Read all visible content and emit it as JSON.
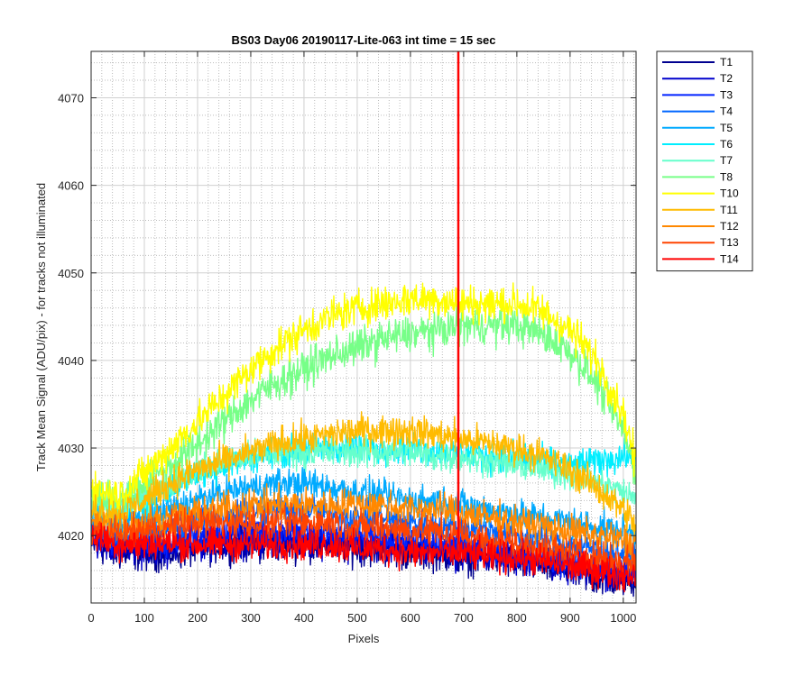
{
  "chart_data": {
    "type": "line",
    "title": "BS03 Day06 20190117-Lite-063 int time = 15 sec",
    "xlabel": "Pixels",
    "ylabel": "Track Mean Signal (ADU/pix) - for tracks not illuminated",
    "xlim": [
      0,
      1024
    ],
    "ylim": [
      4012.3,
      4075.3
    ],
    "x_ticks": [
      "0",
      "100",
      "200",
      "300",
      "400",
      "500",
      "600",
      "700",
      "800",
      "900",
      "1000"
    ],
    "y_ticks": [
      "4020",
      "4030",
      "4040",
      "4050",
      "4060",
      "4070"
    ],
    "grid": "major and minor",
    "legend_position": "outside-right",
    "spike": {
      "series": "T14",
      "x": 690,
      "y_top": 4075.3
    },
    "x": [
      0,
      50,
      100,
      150,
      200,
      250,
      300,
      350,
      400,
      450,
      500,
      550,
      600,
      650,
      700,
      750,
      800,
      850,
      900,
      950,
      1000,
      1024
    ],
    "series": [
      {
        "name": "T1",
        "color": "#00008F",
        "noise": 1.5,
        "values": [
          4019,
          4018,
          4018,
          4018,
          4018.5,
          4019,
          4019,
          4019,
          4019,
          4019,
          4018.5,
          4018.5,
          4018,
          4018,
          4017.5,
          4017.5,
          4017,
          4016.5,
          4016,
          4015,
          4015,
          4015
        ]
      },
      {
        "name": "T2",
        "color": "#0000CC",
        "noise": 1.5,
        "values": [
          4019.5,
          4018.5,
          4018.5,
          4018.5,
          4019,
          4019.5,
          4019.5,
          4019.5,
          4019.5,
          4019.5,
          4019,
          4019,
          4018.5,
          4018.5,
          4018,
          4018,
          4017.5,
          4017,
          4016.5,
          4016,
          4015.5,
          4015.5
        ]
      },
      {
        "name": "T3",
        "color": "#0022FF",
        "noise": 1.3,
        "values": [
          4020,
          4019.5,
          4019.5,
          4019.5,
          4020,
          4020.5,
          4020.5,
          4020.5,
          4020.5,
          4020,
          4020,
          4019.5,
          4019.5,
          4019,
          4019,
          4018.5,
          4018,
          4017.5,
          4017,
          4016.5,
          4016,
          4016
        ]
      },
      {
        "name": "T4",
        "color": "#0066FF",
        "noise": 1.3,
        "values": [
          4021,
          4020,
          4020.5,
          4021,
          4022,
          4022.5,
          4023,
          4023,
          4023,
          4022.5,
          4022,
          4022,
          4021.5,
          4021,
          4021,
          4020.5,
          4020,
          4019.5,
          4019,
          4018.5,
          4018,
          4018
        ]
      },
      {
        "name": "T5",
        "color": "#00AAFF",
        "noise": 1.3,
        "values": [
          4022,
          4021.5,
          4022,
          4023,
          4024,
          4025,
          4025.5,
          4026,
          4026,
          4025.5,
          4025,
          4024.5,
          4024,
          4024,
          4023.5,
          4023,
          4022.5,
          4022,
          4021.5,
          4021,
          4020.5,
          4020
        ]
      },
      {
        "name": "T6",
        "color": "#00EEFF",
        "noise": 1.3,
        "values": [
          4024,
          4023,
          4024,
          4025.5,
          4027,
          4028,
          4029,
          4029.5,
          4030,
          4030,
          4030,
          4030,
          4030,
          4029.5,
          4029.5,
          4029,
          4029,
          4028.5,
          4028,
          4028.5,
          4029,
          4029
        ]
      },
      {
        "name": "T7",
        "color": "#66FFCC",
        "noise": 1.3,
        "values": [
          4024,
          4023.5,
          4024.5,
          4026,
          4027.5,
          4028.5,
          4029,
          4029.5,
          4029.5,
          4029.5,
          4029.5,
          4029.5,
          4029.5,
          4029,
          4029,
          4028.5,
          4028,
          4027.5,
          4027,
          4026,
          4025,
          4024
        ]
      },
      {
        "name": "T8",
        "color": "#77FF88",
        "noise": 1.6,
        "values": [
          4025,
          4024,
          4026,
          4028,
          4030.5,
          4033,
          4035.5,
          4037.5,
          4039,
          4040.5,
          4041.5,
          4042.5,
          4043,
          4043.5,
          4044,
          4044,
          4044,
          4043,
          4041,
          4037.5,
          4032,
          4027
        ]
      },
      {
        "name": "T10",
        "color": "#FFFF00",
        "noise": 1.6,
        "values": [
          4025.5,
          4024.5,
          4027,
          4030,
          4033,
          4036,
          4039,
          4041.5,
          4043.5,
          4045,
          4046,
          4046.5,
          4047,
          4047,
          4046.5,
          4046.5,
          4046.5,
          4045.5,
          4043.5,
          4040,
          4034,
          4028
        ]
      },
      {
        "name": "T11",
        "color": "#FFBB00",
        "noise": 1.4,
        "values": [
          4023,
          4022.5,
          4024,
          4026,
          4027.5,
          4028.5,
          4029.5,
          4030.5,
          4031,
          4031.5,
          4032,
          4032,
          4032,
          4031.5,
          4031,
          4030.5,
          4030,
          4029,
          4027.5,
          4025.5,
          4023,
          4021
        ]
      },
      {
        "name": "T12",
        "color": "#FF8800",
        "noise": 1.4,
        "values": [
          4021.5,
          4021,
          4021.5,
          4022,
          4022.5,
          4023,
          4023.5,
          4023.5,
          4023.5,
          4023.5,
          4023.5,
          4023.5,
          4023,
          4023,
          4022.5,
          4022,
          4021.5,
          4021,
          4020.5,
          4020,
          4019.5,
          4019
        ]
      },
      {
        "name": "T13",
        "color": "#FF4400",
        "noise": 1.4,
        "values": [
          4020.5,
          4020,
          4020.5,
          4021,
          4021.5,
          4021.5,
          4021.5,
          4021.5,
          4021.5,
          4021.5,
          4021,
          4021,
          4020.5,
          4020.5,
          4020,
          4019.5,
          4019,
          4018.5,
          4018,
          4017.5,
          4017,
          4017
        ]
      },
      {
        "name": "T14",
        "color": "#FF0000",
        "noise": 1.4,
        "values": [
          4020,
          4019,
          4019,
          4019,
          4019,
          4019,
          4019,
          4019,
          4019,
          4019,
          4018.5,
          4018.5,
          4018,
          4018,
          4018,
          4017.5,
          4017.5,
          4017,
          4016.5,
          4016,
          4015.5,
          4015.5
        ]
      }
    ]
  }
}
